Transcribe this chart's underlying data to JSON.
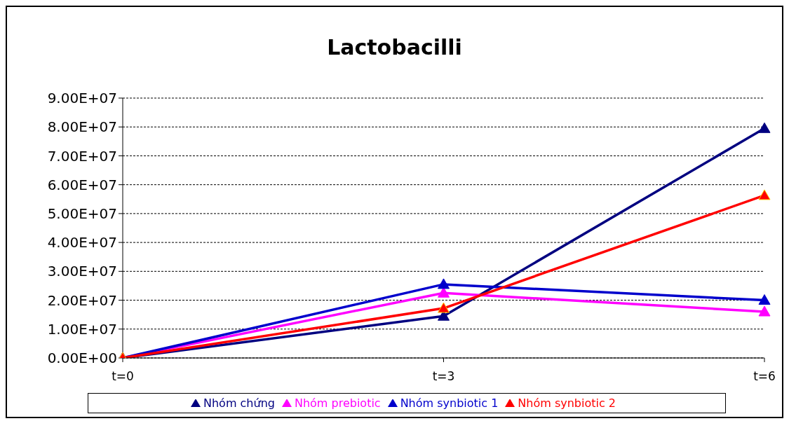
{
  "chart_data": {
    "type": "line",
    "title": "Lactobacilli",
    "categories": [
      "t=0",
      "t=3",
      "t=6"
    ],
    "series": [
      {
        "name": "Nhóm chứng",
        "color": "#000080",
        "values": [
          0,
          14500000,
          79500000
        ]
      },
      {
        "name": "Nhóm prebiotic",
        "color": "#ff00ff",
        "values": [
          0,
          22500000,
          16000000
        ]
      },
      {
        "name": "Nhóm synbiotic 1",
        "color": "#0000cc",
        "values": [
          0,
          25500000,
          20000000
        ]
      },
      {
        "name": "Nhóm synbiotic 2",
        "color": "#ff0000",
        "values": [
          0,
          17200000,
          56300000
        ]
      }
    ],
    "ylim": [
      0,
      90000000
    ],
    "yticks": [
      {
        "value": 0,
        "label": "0.00E+00"
      },
      {
        "value": 10000000,
        "label": "1.00E+07"
      },
      {
        "value": 20000000,
        "label": "2.00E+07"
      },
      {
        "value": 30000000,
        "label": "3.00E+07"
      },
      {
        "value": 40000000,
        "label": "4.00E+07"
      },
      {
        "value": 50000000,
        "label": "5.00E+07"
      },
      {
        "value": 60000000,
        "label": "6.00E+07"
      },
      {
        "value": 70000000,
        "label": "7.00E+07"
      },
      {
        "value": 80000000,
        "label": "8.00E+07"
      },
      {
        "value": 90000000,
        "label": "9.00E+07"
      }
    ],
    "grid": "y",
    "legend": "bottom",
    "marker": "triangle",
    "line_style": "solid"
  }
}
